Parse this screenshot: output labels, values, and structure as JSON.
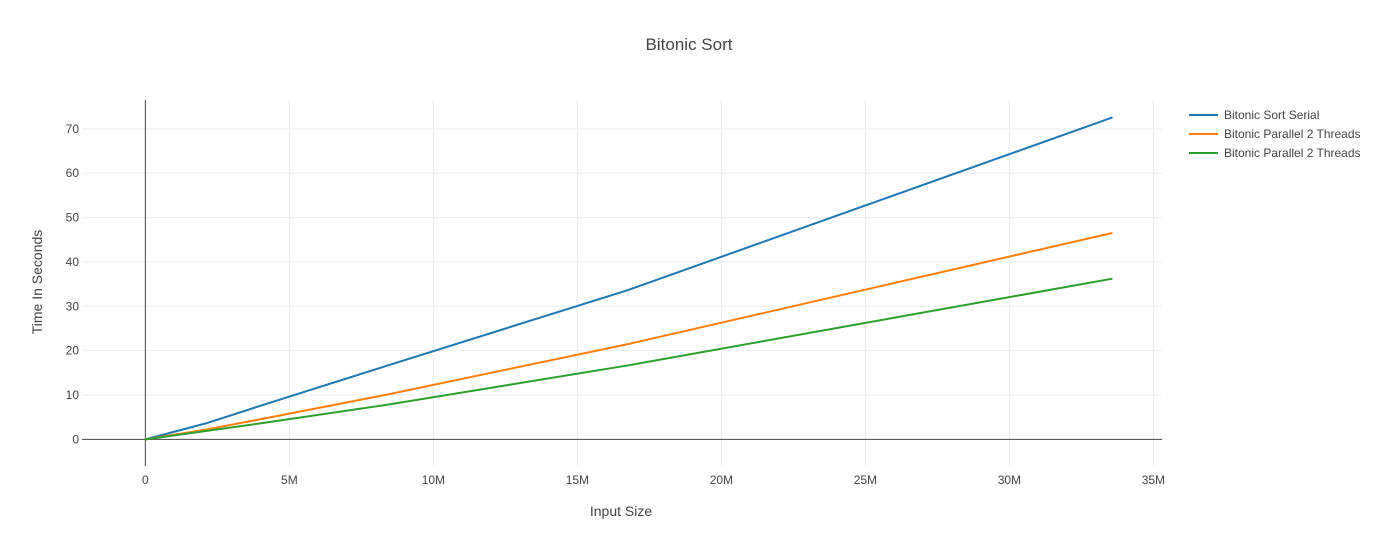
{
  "chart_data": {
    "type": "line",
    "title": "Bitonic Sort",
    "xlabel": "Input Size",
    "ylabel": "Time In Seconds",
    "xlim": [
      -2200000,
      35300000
    ],
    "ylim": [
      -6,
      76.5
    ],
    "x_ticks": [
      0,
      5000000,
      10000000,
      15000000,
      20000000,
      25000000,
      30000000,
      35000000
    ],
    "x_tick_labels": [
      "0",
      "5M",
      "10M",
      "15M",
      "20M",
      "25M",
      "30M",
      "35M"
    ],
    "y_ticks": [
      0,
      10,
      20,
      30,
      40,
      50,
      60,
      70
    ],
    "y_tick_labels": [
      "0",
      "10",
      "20",
      "30",
      "40",
      "50",
      "60",
      "70"
    ],
    "grid": true,
    "legend_position": "top-right",
    "x": [
      0,
      2097152,
      4194304,
      8388608,
      16777216,
      33554432
    ],
    "series": [
      {
        "name": "Bitonic Sort Serial",
        "color": "#1f77b4",
        "values": [
          0,
          3.6,
          8,
          16.6,
          33.7,
          72.5
        ]
      },
      {
        "name": "Bitonic Parallel 2 Threads",
        "color": "#ff7f0e",
        "values": [
          0,
          2.2,
          4.8,
          10.1,
          21.5,
          46.5
        ]
      },
      {
        "name": "Bitonic Parallel 2 Threads",
        "color": "#2ca02c",
        "values": [
          0,
          1.9,
          3.8,
          7.8,
          16.7,
          36.2
        ]
      }
    ]
  }
}
